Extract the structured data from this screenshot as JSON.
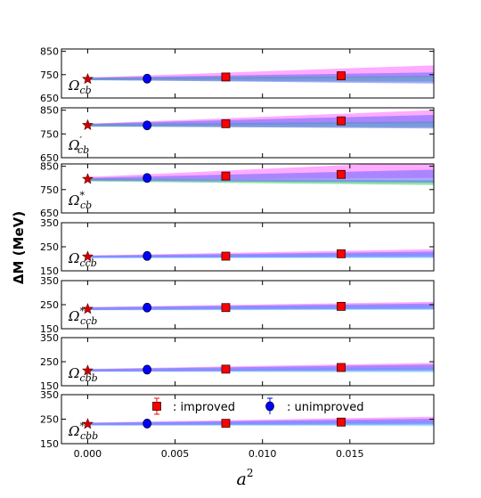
{
  "chart_data": {
    "type": "scatter",
    "x_label": "a^2",
    "y_label": "ΔM (MeV)",
    "xlim": [
      -0.0015,
      0.0198
    ],
    "x_ticks": [
      0.0,
      0.005,
      0.01,
      0.015
    ],
    "x_tick_labels": [
      "0.000",
      "0.005",
      "0.010",
      "0.015"
    ],
    "legend": {
      "placement": "bottom panel, top",
      "items": [
        {
          "label": ":  improved",
          "marker": "square",
          "color": "#ff0000"
        },
        {
          "label": ": unimproved",
          "marker": "circle",
          "color": "#0000ff"
        }
      ]
    },
    "colors": {
      "improved": "#ff0000",
      "unimproved": "#0000ff",
      "band_pink": "#ff66ff",
      "band_green": "#33cc66",
      "band_cyan": "#66ccff",
      "band_blue": "#6666ff",
      "star": "#cc0000"
    },
    "panels": [
      {
        "label_base": "Ω",
        "label_mark": "",
        "label_sub": "cb",
        "ylim": [
          650,
          860
        ],
        "yticks": [
          650,
          750,
          850
        ],
        "improved": [
          {
            "x": 0.0079,
            "y": 740,
            "err": 6
          },
          {
            "x": 0.0145,
            "y": 745,
            "err": 7
          }
        ],
        "unimproved": [
          {
            "x": 0.0034,
            "y": 733,
            "err": 5
          }
        ],
        "continuum": {
          "x": 0.0,
          "y": 731
        },
        "bands": [
          {
            "name": "pink",
            "color": "#ff66ff",
            "x": [
              0.0,
              0.0198
            ],
            "lower": [
              727,
              738
            ],
            "upper": [
              738,
              790
            ]
          },
          {
            "name": "green",
            "color": "#33cc66",
            "x": [
              0.0,
              0.0198
            ],
            "lower": [
              726,
              720
            ],
            "upper": [
              737,
              745
            ]
          },
          {
            "name": "blue",
            "color": "#6666ff",
            "x": [
              0.0,
              0.0198
            ],
            "lower": [
              727,
              712
            ],
            "upper": [
              737,
              760
            ]
          }
        ]
      },
      {
        "label_base": "Ω",
        "label_mark": "′",
        "label_sub": "cb",
        "ylim": [
          650,
          860
        ],
        "yticks": [
          650,
          750,
          850
        ],
        "improved": [
          {
            "x": 0.0079,
            "y": 793,
            "err": 6
          },
          {
            "x": 0.0145,
            "y": 805,
            "err": 9
          }
        ],
        "unimproved": [
          {
            "x": 0.0034,
            "y": 786,
            "err": 5
          }
        ],
        "continuum": {
          "x": 0.0,
          "y": 787
        },
        "bands": [
          {
            "name": "pink",
            "color": "#ff66ff",
            "x": [
              0.0,
              0.0198
            ],
            "lower": [
              782,
              795
            ],
            "upper": [
              793,
              850
            ]
          },
          {
            "name": "green",
            "color": "#33cc66",
            "x": [
              0.0,
              0.0198
            ],
            "lower": [
              780,
              778
            ],
            "upper": [
              792,
              803
            ]
          },
          {
            "name": "blue",
            "color": "#6666ff",
            "x": [
              0.0,
              0.0198
            ],
            "lower": [
              782,
              773
            ],
            "upper": [
              793,
              830
            ]
          }
        ]
      },
      {
        "label_base": "Ω",
        "label_mark": "*",
        "label_sub": "cb",
        "ylim": [
          650,
          860
        ],
        "yticks": [
          650,
          750,
          850
        ],
        "improved": [
          {
            "x": 0.0079,
            "y": 808,
            "err": 7
          },
          {
            "x": 0.0145,
            "y": 815,
            "err": 9
          }
        ],
        "unimproved": [
          {
            "x": 0.0034,
            "y": 800,
            "err": 5
          }
        ],
        "continuum": {
          "x": 0.0,
          "y": 795
        },
        "bands": [
          {
            "name": "pink",
            "color": "#ff66ff",
            "x": [
              0.0,
              0.0198
            ],
            "lower": [
              790,
              800
            ],
            "upper": [
              804,
              872
            ]
          },
          {
            "name": "green",
            "color": "#33cc66",
            "x": [
              0.0,
              0.0198
            ],
            "lower": [
              785,
              770
            ],
            "upper": [
              798,
              790
            ]
          },
          {
            "name": "blue",
            "color": "#6666ff",
            "x": [
              0.0,
              0.0198
            ],
            "lower": [
              788,
              780
            ],
            "upper": [
              800,
              835
            ]
          }
        ]
      },
      {
        "label_base": "Ω",
        "label_mark": "",
        "label_sub": "ccb",
        "ylim": [
          150,
          350
        ],
        "yticks": [
          150,
          250,
          350
        ],
        "improved": [
          {
            "x": 0.0079,
            "y": 211,
            "err": 7
          },
          {
            "x": 0.0145,
            "y": 221,
            "err": 8
          }
        ],
        "unimproved": [
          {
            "x": 0.0034,
            "y": 212,
            "err": 5
          }
        ],
        "continuum": {
          "x": 0.0,
          "y": 209
        },
        "bands": [
          {
            "name": "pink",
            "color": "#ff66ff",
            "x": [
              0.0,
              0.0198
            ],
            "lower": [
              204,
              215
            ],
            "upper": [
              214,
              240
            ]
          },
          {
            "name": "cyan",
            "color": "#66ccff",
            "x": [
              0.0,
              0.0198
            ],
            "lower": [
              203,
              203
            ],
            "upper": [
              212,
              222
            ]
          },
          {
            "name": "blue",
            "color": "#6666ff",
            "x": [
              0.0,
              0.0198
            ],
            "lower": [
              204,
              207
            ],
            "upper": [
              213,
              230
            ]
          }
        ]
      },
      {
        "label_base": "Ω",
        "label_mark": "*",
        "label_sub": "ccb",
        "ylim": [
          150,
          350
        ],
        "yticks": [
          150,
          250,
          350
        ],
        "improved": [
          {
            "x": 0.0079,
            "y": 238,
            "err": 8
          },
          {
            "x": 0.0145,
            "y": 243,
            "err": 8
          }
        ],
        "unimproved": [
          {
            "x": 0.0034,
            "y": 238,
            "err": 5
          }
        ],
        "continuum": {
          "x": 0.0,
          "y": 232
        },
        "bands": [
          {
            "name": "pink",
            "color": "#ff66ff",
            "x": [
              0.0,
              0.0198
            ],
            "lower": [
              228,
              240
            ],
            "upper": [
              240,
              262
            ]
          },
          {
            "name": "cyan",
            "color": "#66ccff",
            "x": [
              0.0,
              0.0198
            ],
            "lower": [
              227,
              228
            ],
            "upper": [
              238,
              246
            ]
          },
          {
            "name": "blue",
            "color": "#6666ff",
            "x": [
              0.0,
              0.0198
            ],
            "lower": [
              228,
              232
            ],
            "upper": [
              239,
              255
            ]
          }
        ]
      },
      {
        "label_base": "Ω",
        "label_mark": "",
        "label_sub": "cbb",
        "ylim": [
          150,
          350
        ],
        "yticks": [
          150,
          250,
          350
        ],
        "improved": [
          {
            "x": 0.0079,
            "y": 219,
            "err": 7
          },
          {
            "x": 0.0145,
            "y": 226,
            "err": 9
          }
        ],
        "unimproved": [
          {
            "x": 0.0034,
            "y": 217,
            "err": 5
          }
        ],
        "continuum": {
          "x": 0.0,
          "y": 213
        },
        "bands": [
          {
            "name": "pink",
            "color": "#ff66ff",
            "x": [
              0.0,
              0.0198
            ],
            "lower": [
              209,
              220
            ],
            "upper": [
              220,
              245
            ]
          },
          {
            "name": "cyan",
            "color": "#66ccff",
            "x": [
              0.0,
              0.0198
            ],
            "lower": [
              208,
              206
            ],
            "upper": [
              218,
              225
            ]
          },
          {
            "name": "blue",
            "color": "#6666ff",
            "x": [
              0.0,
              0.0198
            ],
            "lower": [
              209,
              212
            ],
            "upper": [
              219,
              238
            ]
          }
        ]
      },
      {
        "label_base": "Ω",
        "label_mark": "*",
        "label_sub": "cbb",
        "ylim": [
          150,
          350
        ],
        "yticks": [
          150,
          250,
          350
        ],
        "improved": [
          {
            "x": 0.0079,
            "y": 233,
            "err": 7
          },
          {
            "x": 0.0145,
            "y": 238,
            "err": 9
          }
        ],
        "unimproved": [
          {
            "x": 0.0034,
            "y": 232,
            "err": 5
          }
        ],
        "continuum": {
          "x": 0.0,
          "y": 230
        },
        "bands": [
          {
            "name": "pink",
            "color": "#ff66ff",
            "x": [
              0.0,
              0.0198
            ],
            "lower": [
              225,
              236
            ],
            "upper": [
              236,
              260
            ]
          },
          {
            "name": "cyan",
            "color": "#66ccff",
            "x": [
              0.0,
              0.0198
            ],
            "lower": [
              224,
              222
            ],
            "upper": [
              234,
              242
            ]
          },
          {
            "name": "blue",
            "color": "#6666ff",
            "x": [
              0.0,
              0.0198
            ],
            "lower": [
              225,
              228
            ],
            "upper": [
              235,
              252
            ]
          }
        ]
      }
    ]
  }
}
